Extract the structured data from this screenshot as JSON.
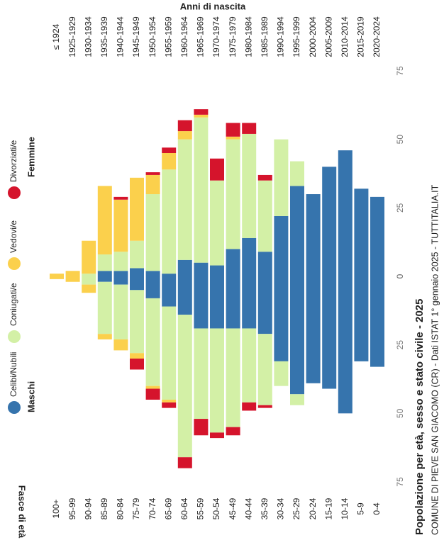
{
  "chart_data": {
    "type": "pyramid",
    "title": "Popolazione per età, sesso e stato civile - 2025",
    "subtitle": "COMUNE DI PIEVE SAN GIACOMO (CR) - Dati ISTAT 1° gennaio 2025 - TUTTITALIA.IT",
    "y_axis_label": "Fasce di età",
    "top_axis_label": "Anni di nascita",
    "sides": [
      "Maschi",
      "Femmine"
    ],
    "categories": [
      "100+",
      "95-99",
      "90-94",
      "85-89",
      "80-84",
      "75-79",
      "70-74",
      "65-69",
      "60-64",
      "55-59",
      "50-54",
      "45-49",
      "40-44",
      "35-39",
      "30-34",
      "25-29",
      "20-24",
      "15-19",
      "10-14",
      "5-9",
      "0-4"
    ],
    "birth_years": [
      "≤ 1924",
      "1925-1929",
      "1930-1934",
      "1935-1939",
      "1940-1944",
      "1945-1949",
      "1950-1954",
      "1955-1959",
      "1960-1964",
      "1965-1969",
      "1970-1974",
      "1975-1979",
      "1980-1984",
      "1985-1989",
      "1990-1994",
      "1995-1999",
      "2000-2004",
      "2005-2009",
      "2010-2014",
      "2015-2019",
      "2020-2024"
    ],
    "xlim": [
      0,
      75
    ],
    "xticks": [
      0,
      25,
      50,
      75
    ],
    "series": [
      {
        "name": "Celibi/Nubili",
        "color": "#3674ad",
        "males": [
          0,
          0,
          0,
          2,
          3,
          5,
          8,
          11,
          14,
          19,
          19,
          19,
          19,
          21,
          31,
          43,
          39,
          41,
          50,
          31,
          33
        ],
        "females": [
          0,
          0,
          0,
          2,
          2,
          3,
          2,
          1,
          6,
          5,
          4,
          10,
          14,
          9,
          22,
          33,
          30,
          40,
          46,
          32,
          29
        ]
      },
      {
        "name": "Coniugati/e",
        "color": "#d3f0a6",
        "males": [
          0,
          0,
          3,
          19,
          20,
          23,
          32,
          34,
          52,
          33,
          38,
          36,
          27,
          26,
          9,
          4,
          0,
          0,
          0,
          0,
          0
        ],
        "females": [
          0,
          0,
          1,
          6,
          7,
          10,
          28,
          38,
          44,
          53,
          31,
          40,
          38,
          26,
          28,
          9,
          0,
          0,
          0,
          0,
          0
        ]
      },
      {
        "name": "Vedovi/e",
        "color": "#fbd04c",
        "males": [
          1,
          2,
          3,
          2,
          4,
          2,
          1,
          1,
          0,
          0,
          0,
          0,
          0,
          0,
          0,
          0,
          0,
          0,
          0,
          0,
          0
        ],
        "females": [
          1,
          2,
          12,
          25,
          19,
          23,
          7,
          6,
          3,
          1,
          0,
          1,
          0,
          0,
          0,
          0,
          0,
          0,
          0,
          0,
          0
        ]
      },
      {
        "name": "Divorziati/e",
        "color": "#d5142c",
        "males": [
          0,
          0,
          0,
          0,
          0,
          4,
          4,
          2,
          4,
          6,
          2,
          3,
          3,
          1,
          0,
          0,
          0,
          0,
          0,
          0,
          0
        ],
        "females": [
          0,
          0,
          0,
          0,
          1,
          0,
          1,
          2,
          4,
          2,
          8,
          5,
          4,
          2,
          0,
          0,
          0,
          0,
          0,
          0,
          0
        ]
      }
    ]
  }
}
